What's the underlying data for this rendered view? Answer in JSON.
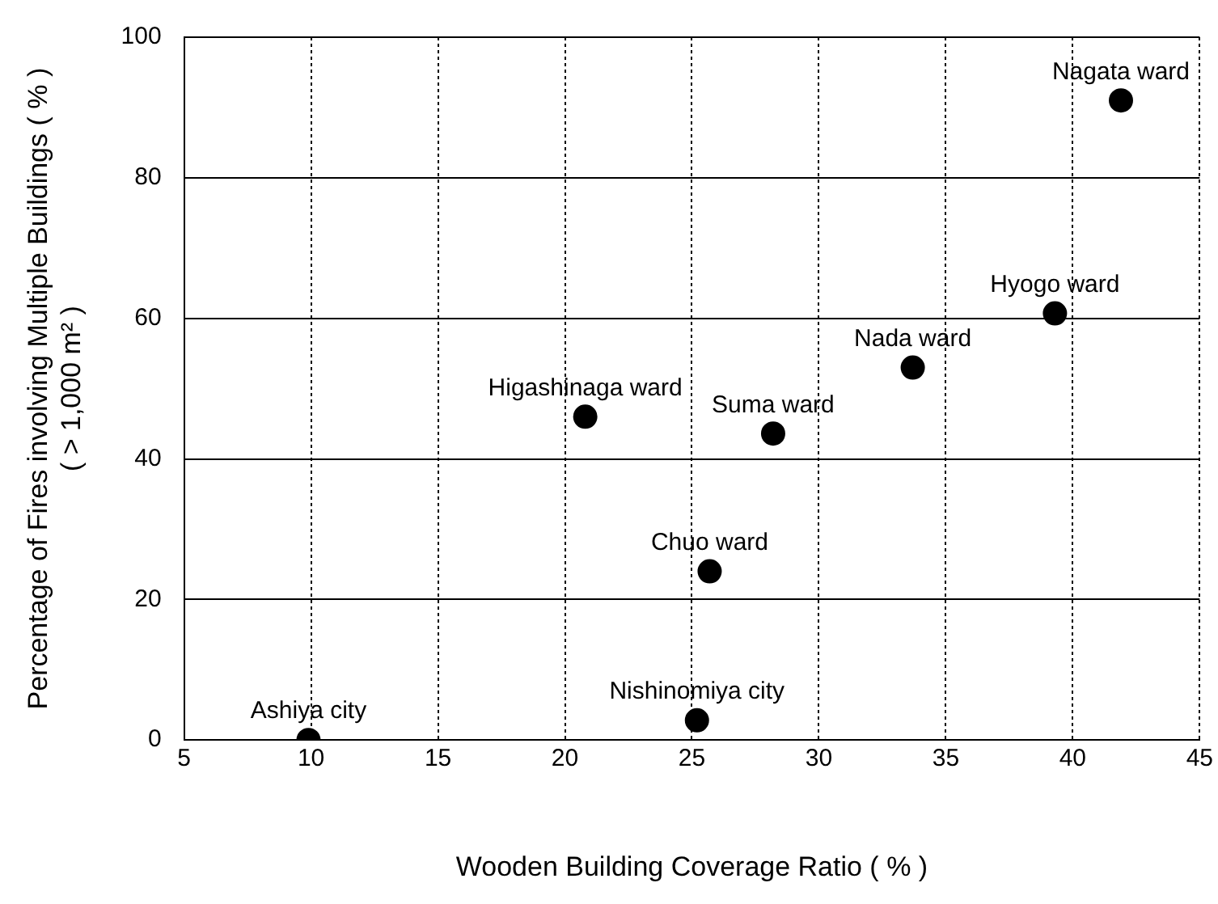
{
  "chart_data": {
    "type": "scatter",
    "xlabel": "Wooden Building Coverage Ratio ( % )",
    "ylabel": "Percentage of Fires involving Multiple Buildings ( % )\n( > 1,000 m² )",
    "x": [
      41.9,
      39.3,
      33.7,
      20.8,
      28.2,
      25.7,
      25.2,
      9.9
    ],
    "values": [
      91,
      60.7,
      53,
      46,
      43.6,
      24,
      2.8,
      0
    ],
    "color": "#000000",
    "marker": "circle",
    "grid": true,
    "xlim": [
      5,
      45
    ],
    "xticks": [
      5,
      10,
      15,
      20,
      25,
      30,
      35,
      40,
      45
    ],
    "ylim": [
      0,
      100
    ],
    "yticks": [
      0,
      20,
      40,
      60,
      80,
      100
    ],
    "annotations": [
      {
        "text": "Nagata ward",
        "x": 41.9,
        "y": 91
      },
      {
        "text": "Hyogo ward",
        "x": 39.3,
        "y": 60.7
      },
      {
        "text": "Nada ward",
        "x": 33.7,
        "y": 53
      },
      {
        "text": "Higashinaga ward",
        "x": 20.8,
        "y": 46
      },
      {
        "text": "Suma ward",
        "x": 28.2,
        "y": 43.6
      },
      {
        "text": "Chuo ward",
        "x": 25.7,
        "y": 24
      },
      {
        "text": "Nishinomiya city",
        "x": 25.2,
        "y": 2.8
      },
      {
        "text": "Ashiya city",
        "x": 9.9,
        "y": 0
      }
    ]
  }
}
